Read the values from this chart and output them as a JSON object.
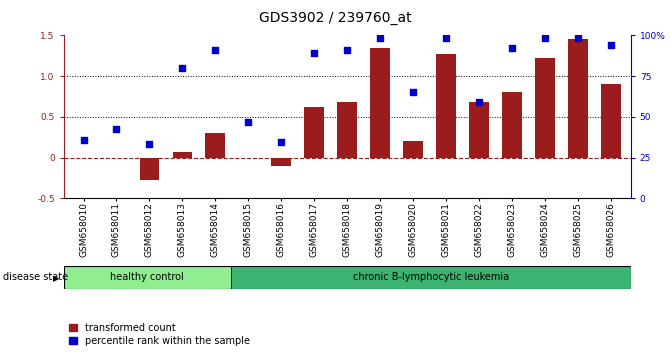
{
  "title": "GDS3902 / 239760_at",
  "categories": [
    "GSM658010",
    "GSM658011",
    "GSM658012",
    "GSM658013",
    "GSM658014",
    "GSM658015",
    "GSM658016",
    "GSM658017",
    "GSM658018",
    "GSM658019",
    "GSM658020",
    "GSM658021",
    "GSM658022",
    "GSM658023",
    "GSM658024",
    "GSM658025",
    "GSM658026"
  ],
  "bar_values": [
    0.0,
    0.0,
    -0.27,
    0.07,
    0.3,
    0.0,
    -0.1,
    0.62,
    0.68,
    1.35,
    0.2,
    1.27,
    0.68,
    0.8,
    1.22,
    1.45,
    0.9
  ],
  "dot_values": [
    0.22,
    0.35,
    0.17,
    1.1,
    1.32,
    0.44,
    0.19,
    1.28,
    1.32,
    1.47,
    0.8,
    1.47,
    0.68,
    1.35,
    1.47,
    1.47,
    1.38
  ],
  "bar_color": "#9B1C1C",
  "dot_color": "#0000CD",
  "healthy_color": "#90EE90",
  "leukemia_color": "#3CB371",
  "healthy_label": "healthy control",
  "leukemia_label": "chronic B-lymphocytic leukemia",
  "disease_label": "disease state",
  "n_healthy": 5,
  "n_leukemia": 12,
  "ylim": [
    -0.5,
    1.5
  ],
  "y2lim": [
    0,
    100
  ],
  "yticks_left": [
    -0.5,
    0.0,
    0.5,
    1.0,
    1.5
  ],
  "yticks_right": [
    0,
    25,
    50,
    75,
    100
  ],
  "ytick_labels_right": [
    "0",
    "25",
    "50",
    "75",
    "100%"
  ],
  "dotted_lines": [
    0.5,
    1.0
  ],
  "zero_line": 0.0,
  "legend_entries": [
    "transformed count",
    "percentile rank within the sample"
  ],
  "title_fontsize": 10,
  "tick_fontsize": 6.5,
  "label_fontsize": 7.5
}
